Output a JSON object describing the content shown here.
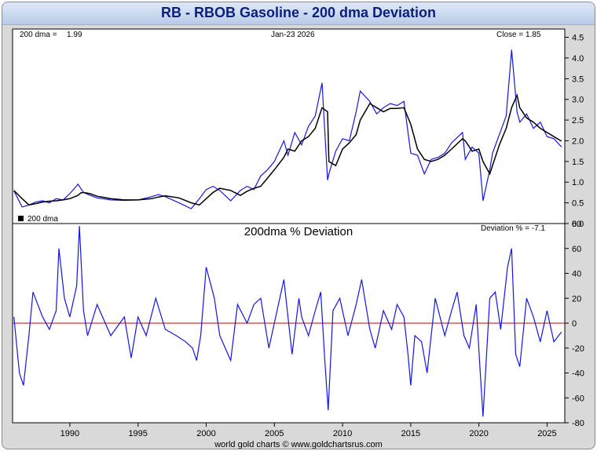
{
  "title": "RB - RBOB Gasoline - 200 dma Deviation",
  "footer": "world gold charts © www.goldchartsrus.com",
  "colors": {
    "price": "#1515e6",
    "dma": "#000000",
    "deviation": "#1515e6",
    "zero_line": "#cc0000",
    "title": "#0c1f7a"
  },
  "chart_data": [
    {
      "type": "line",
      "name": "price-panel",
      "header": {
        "dma_label": "200 dma =",
        "dma_value": "1.99",
        "date": "Jan-23  2026",
        "close_label": "Close = 1.85"
      },
      "legend": "200 dma",
      "ylim": [
        0,
        4.7
      ],
      "yticks": [
        "4.5",
        "4.0",
        "3.5",
        "3.0",
        "2.5",
        "2.0",
        "1.5",
        "1.0",
        "0.5",
        "0.0"
      ],
      "ytick_values": [
        4.5,
        4.0,
        3.5,
        3.0,
        2.5,
        2.0,
        1.5,
        1.0,
        0.5,
        0.0
      ],
      "x": [
        1985.9,
        1986.5,
        1987.0,
        1987.5,
        1988.0,
        1988.5,
        1989.0,
        1989.5,
        1990.0,
        1990.6,
        1990.8,
        1991.0,
        1991.5,
        1992.0,
        1993.0,
        1994.0,
        1995.0,
        1996.0,
        1996.5,
        1997.0,
        1998.0,
        1998.9,
        1999.5,
        2000.0,
        2000.5,
        2001.0,
        2001.8,
        2002.5,
        2003.0,
        2003.5,
        2004.0,
        2004.5,
        2005.0,
        2005.7,
        2006.0,
        2006.5,
        2007.0,
        2007.5,
        2008.0,
        2008.5,
        2008.9,
        2009.0,
        2009.5,
        2010.0,
        2010.5,
        2011.0,
        2011.3,
        2012.0,
        2012.5,
        2013.0,
        2013.5,
        2014.0,
        2014.5,
        2015.0,
        2015.5,
        2016.0,
        2016.5,
        2017.0,
        2017.5,
        2018.0,
        2018.8,
        2019.0,
        2019.5,
        2020.0,
        2020.3,
        2020.8,
        2021.0,
        2021.5,
        2022.0,
        2022.4,
        2022.8,
        2023.0,
        2023.5,
        2024.0,
        2024.5,
        2025.0,
        2025.5,
        2026.06
      ],
      "price": [
        0.79,
        0.4,
        0.45,
        0.52,
        0.55,
        0.5,
        0.6,
        0.57,
        0.72,
        0.95,
        0.85,
        0.75,
        0.68,
        0.62,
        0.57,
        0.56,
        0.57,
        0.65,
        0.7,
        0.65,
        0.5,
        0.36,
        0.6,
        0.82,
        0.9,
        0.8,
        0.55,
        0.8,
        0.9,
        0.82,
        1.15,
        1.3,
        1.5,
        2.0,
        1.65,
        2.2,
        1.9,
        2.35,
        2.6,
        3.4,
        1.05,
        1.2,
        1.75,
        2.05,
        2.0,
        2.7,
        3.2,
        2.95,
        2.65,
        2.8,
        2.9,
        2.85,
        2.95,
        1.7,
        1.65,
        1.2,
        1.55,
        1.6,
        1.7,
        1.95,
        2.2,
        1.55,
        1.85,
        1.7,
        0.55,
        1.3,
        1.7,
        2.15,
        2.6,
        4.2,
        2.7,
        2.45,
        2.65,
        2.3,
        2.45,
        2.1,
        2.05,
        1.85
      ],
      "dma": [
        0.8,
        0.6,
        0.45,
        0.48,
        0.52,
        0.54,
        0.55,
        0.57,
        0.6,
        0.68,
        0.74,
        0.75,
        0.72,
        0.66,
        0.6,
        0.57,
        0.57,
        0.6,
        0.64,
        0.67,
        0.62,
        0.5,
        0.45,
        0.6,
        0.75,
        0.85,
        0.8,
        0.68,
        0.78,
        0.85,
        0.9,
        1.1,
        1.3,
        1.6,
        1.8,
        1.75,
        2.0,
        2.1,
        2.3,
        2.8,
        2.7,
        1.5,
        1.4,
        1.8,
        1.95,
        2.15,
        2.5,
        2.9,
        2.8,
        2.7,
        2.78,
        2.78,
        2.8,
        2.4,
        1.8,
        1.55,
        1.5,
        1.55,
        1.65,
        1.8,
        2.05,
        2.0,
        1.75,
        1.8,
        1.5,
        1.2,
        1.4,
        1.9,
        2.3,
        2.8,
        3.1,
        2.8,
        2.55,
        2.45,
        2.3,
        2.2,
        2.1,
        1.99
      ]
    },
    {
      "type": "line",
      "name": "deviation-panel",
      "title": "200dma  %  Deviation",
      "header": {
        "deviation_label": "Deviation % = -7.1"
      },
      "ylim": [
        -80,
        80
      ],
      "yticks": [
        "80",
        "60",
        "40",
        "20",
        "0",
        "-20",
        "-40",
        "-60",
        "-80"
      ],
      "ytick_values": [
        80,
        60,
        40,
        20,
        0,
        -20,
        -40,
        -60,
        -80
      ],
      "xlim": [
        1985.8,
        2026.3
      ],
      "xticks": [
        "1990",
        "1995",
        "2000",
        "2005",
        "2010",
        "2015",
        "2020",
        "2025"
      ],
      "xtick_values": [
        1990,
        1995,
        2000,
        2005,
        2010,
        2015,
        2020,
        2025
      ],
      "x": [
        1985.9,
        1986.3,
        1986.6,
        1987.0,
        1987.3,
        1988.0,
        1988.5,
        1989.0,
        1989.2,
        1989.6,
        1990.0,
        1990.5,
        1990.7,
        1991.0,
        1991.3,
        1992.0,
        1993.0,
        1994.0,
        1994.5,
        1995.0,
        1995.6,
        1996.3,
        1997.0,
        1997.8,
        1998.5,
        1999.0,
        1999.3,
        1999.6,
        2000.0,
        2000.6,
        2001.0,
        2001.8,
        2002.3,
        2003.0,
        2003.5,
        2004.0,
        2004.6,
        2005.2,
        2005.7,
        2006.3,
        2006.8,
        2007.0,
        2007.5,
        2008.0,
        2008.4,
        2008.7,
        2008.95,
        2009.3,
        2009.8,
        2010.4,
        2011.0,
        2011.4,
        2012.0,
        2012.4,
        2013.0,
        2013.6,
        2014.0,
        2014.5,
        2014.8,
        2015.0,
        2015.3,
        2015.8,
        2016.2,
        2016.8,
        2017.5,
        2018.0,
        2018.4,
        2018.9,
        2019.3,
        2019.8,
        2020.1,
        2020.3,
        2020.8,
        2021.2,
        2021.6,
        2022.1,
        2022.4,
        2022.7,
        2023.0,
        2023.5,
        2024.0,
        2024.5,
        2025.0,
        2025.5,
        2026.06
      ],
      "deviation": [
        5,
        -40,
        -50,
        -10,
        25,
        5,
        -5,
        10,
        60,
        20,
        5,
        30,
        78,
        10,
        -10,
        15,
        -10,
        5,
        -28,
        5,
        -10,
        20,
        -5,
        -10,
        -15,
        -20,
        -30,
        -10,
        45,
        20,
        -10,
        -30,
        15,
        0,
        15,
        20,
        -20,
        10,
        35,
        -25,
        20,
        5,
        -10,
        10,
        25,
        -30,
        -70,
        10,
        20,
        -10,
        15,
        35,
        -5,
        -20,
        10,
        -5,
        15,
        5,
        -25,
        -50,
        -10,
        -15,
        -40,
        20,
        -10,
        10,
        25,
        -10,
        -20,
        15,
        -40,
        -75,
        20,
        25,
        -5,
        45,
        60,
        -25,
        -35,
        20,
        5,
        -15,
        10,
        -15,
        -7.1
      ]
    }
  ]
}
